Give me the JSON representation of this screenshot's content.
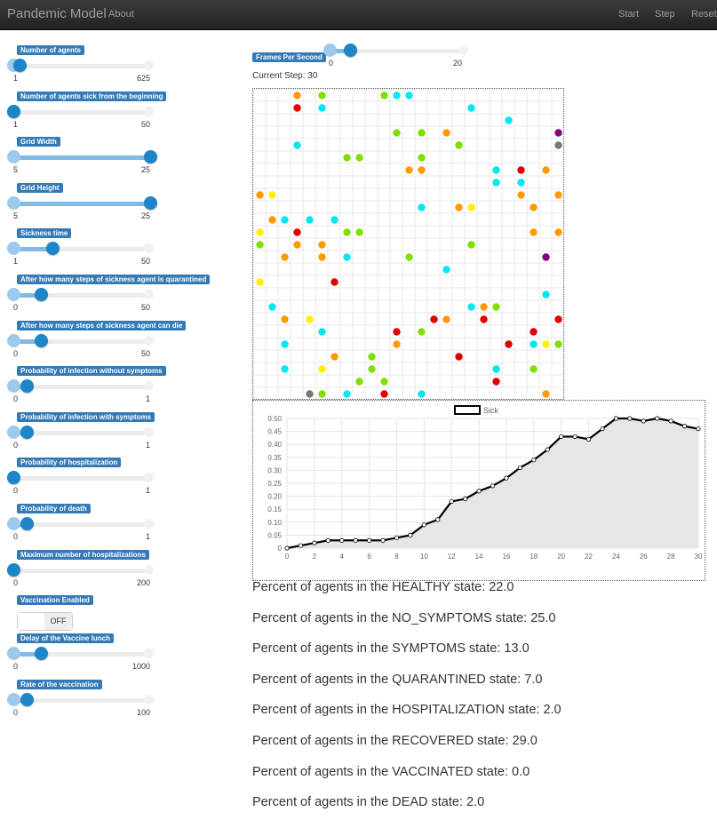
{
  "navbar": {
    "brand": "Pandemic Model",
    "about": "About",
    "start": "Start",
    "step": "Step",
    "reset": "Reset"
  },
  "params": [
    {
      "label": "Number of agents",
      "min": "1",
      "max": "625",
      "fraction": 0.047
    },
    {
      "label": "Number of agents sick from the beginning",
      "min": "1",
      "max": "50",
      "fraction": 0.0
    },
    {
      "label": "Grid Width",
      "min": "5",
      "max": "25",
      "fraction": 1.0
    },
    {
      "label": "Grid Height",
      "min": "5",
      "max": "25",
      "fraction": 1.0
    },
    {
      "label": "Sickness time",
      "min": "1",
      "max": "50",
      "fraction": 0.286
    },
    {
      "label": "After how many steps of sickness agent is quarantined",
      "min": "0",
      "max": "50",
      "fraction": 0.2
    },
    {
      "label": "After how many steps of sickness agent can die",
      "min": "0",
      "max": "50",
      "fraction": 0.2
    },
    {
      "label": "Probability of infection without symptoms",
      "min": "0",
      "max": "1",
      "fraction": 0.1
    },
    {
      "label": "Probability of infection with symptoms",
      "min": "0",
      "max": "1",
      "fraction": 0.1
    },
    {
      "label": "Probability of hospitalization",
      "min": "0",
      "max": "1",
      "fraction": 0.0
    },
    {
      "label": "Probability of death",
      "min": "0",
      "max": "1",
      "fraction": 0.1
    },
    {
      "label": "Maximum number of hospitalizations",
      "min": "0",
      "max": "200",
      "fraction": 0.0
    }
  ],
  "vaccination": {
    "label": "Vaccination Enabled",
    "state": "OFF"
  },
  "vaccine_params": [
    {
      "label": "Delay of the Vaccine lunch",
      "min": "0",
      "max": "1000",
      "fraction": 0.2
    },
    {
      "label": "Rate of the vaccination",
      "min": "0",
      "max": "100",
      "fraction": 0.1
    }
  ],
  "fps": {
    "label": "Frames Per Second",
    "min": "0",
    "max": "20",
    "fraction": 0.15
  },
  "current_step_text": "Current Step: 30",
  "state_colors": {
    "H": "#7fe000",
    "N": "#00e8f0",
    "S": "#ff9900",
    "Q": "#ffee00",
    "P": "#800080",
    "R": "#e00000",
    "D": "#777777"
  },
  "grid_rows": [
    ".....S....H.....HNN.....................",
    ".....R....N..............N.........",
    ".......................................",
    "..................H....H..S.....",
    "...",
    "...",
    "...",
    "..."
  ],
  "agents": [
    {
      "c": 3,
      "r": 0,
      "s": "S"
    },
    {
      "c": 5,
      "r": 0,
      "s": "H"
    },
    {
      "c": 10,
      "r": 0,
      "s": "H"
    },
    {
      "c": 11,
      "r": 0,
      "s": "N"
    },
    {
      "c": 12,
      "r": 0,
      "s": "N"
    },
    {
      "c": 3,
      "r": 1,
      "s": "R"
    },
    {
      "c": 5,
      "r": 1,
      "s": "N"
    },
    {
      "c": 17,
      "r": 1,
      "s": "N"
    },
    {
      "c": 20,
      "r": 2,
      "s": "N"
    },
    {
      "c": 11,
      "r": 3,
      "s": "H"
    },
    {
      "c": 13,
      "r": 3,
      "s": "H"
    },
    {
      "c": 15,
      "r": 3,
      "s": "S"
    },
    {
      "c": 24,
      "r": 3,
      "s": "P"
    },
    {
      "c": 3,
      "r": 4,
      "s": "N"
    },
    {
      "c": 16,
      "r": 4,
      "s": "H"
    },
    {
      "c": 24,
      "r": 4,
      "s": "D"
    },
    {
      "c": 7,
      "r": 5,
      "s": "H"
    },
    {
      "c": 8,
      "r": 5,
      "s": "H"
    },
    {
      "c": 13,
      "r": 5,
      "s": "H"
    },
    {
      "c": 12,
      "r": 6,
      "s": "S"
    },
    {
      "c": 13,
      "r": 6,
      "s": "S"
    },
    {
      "c": 19,
      "r": 6,
      "s": "N"
    },
    {
      "c": 21,
      "r": 6,
      "s": "R"
    },
    {
      "c": 23,
      "r": 6,
      "s": "S"
    },
    {
      "c": 19,
      "r": 7,
      "s": "N"
    },
    {
      "c": 21,
      "r": 7,
      "s": "N"
    },
    {
      "c": 0,
      "r": 8,
      "s": "S"
    },
    {
      "c": 1,
      "r": 8,
      "s": "Q"
    },
    {
      "c": 21,
      "r": 8,
      "s": "S"
    },
    {
      "c": 24,
      "r": 8,
      "s": "S"
    },
    {
      "c": 13,
      "r": 9,
      "s": "N"
    },
    {
      "c": 16,
      "r": 9,
      "s": "S"
    },
    {
      "c": 17,
      "r": 9,
      "s": "Q"
    },
    {
      "c": 22,
      "r": 9,
      "s": "S"
    },
    {
      "c": 1,
      "r": 10,
      "s": "S"
    },
    {
      "c": 2,
      "r": 10,
      "s": "N"
    },
    {
      "c": 4,
      "r": 10,
      "s": "N"
    },
    {
      "c": 6,
      "r": 10,
      "s": "N"
    },
    {
      "c": 0,
      "r": 11,
      "s": "Q"
    },
    {
      "c": 3,
      "r": 11,
      "s": "R"
    },
    {
      "c": 7,
      "r": 11,
      "s": "H"
    },
    {
      "c": 8,
      "r": 11,
      "s": "H"
    },
    {
      "c": 22,
      "r": 11,
      "s": "S"
    },
    {
      "c": 24,
      "r": 11,
      "s": "S"
    },
    {
      "c": 0,
      "r": 12,
      "s": "H"
    },
    {
      "c": 3,
      "r": 12,
      "s": "S"
    },
    {
      "c": 5,
      "r": 12,
      "s": "S"
    },
    {
      "c": 17,
      "r": 12,
      "s": "H"
    },
    {
      "c": 2,
      "r": 13,
      "s": "S"
    },
    {
      "c": 5,
      "r": 13,
      "s": "S"
    },
    {
      "c": 7,
      "r": 13,
      "s": "N"
    },
    {
      "c": 12,
      "r": 13,
      "s": "H"
    },
    {
      "c": 23,
      "r": 13,
      "s": "P"
    },
    {
      "c": 15,
      "r": 14,
      "s": "N"
    },
    {
      "c": 0,
      "r": 15,
      "s": "Q"
    },
    {
      "c": 6,
      "r": 15,
      "s": "R"
    },
    {
      "c": 23,
      "r": 16,
      "s": "N"
    },
    {
      "c": 1,
      "r": 17,
      "s": "N"
    },
    {
      "c": 17,
      "r": 17,
      "s": "N"
    },
    {
      "c": 18,
      "r": 17,
      "s": "S"
    },
    {
      "c": 19,
      "r": 17,
      "s": "H"
    },
    {
      "c": 2,
      "r": 18,
      "s": "S"
    },
    {
      "c": 4,
      "r": 18,
      "s": "Q"
    },
    {
      "c": 14,
      "r": 18,
      "s": "R"
    },
    {
      "c": 15,
      "r": 18,
      "s": "S"
    },
    {
      "c": 18,
      "r": 18,
      "s": "R"
    },
    {
      "c": 24,
      "r": 18,
      "s": "R"
    },
    {
      "c": 5,
      "r": 19,
      "s": "N"
    },
    {
      "c": 11,
      "r": 19,
      "s": "R"
    },
    {
      "c": 13,
      "r": 19,
      "s": "H"
    },
    {
      "c": 22,
      "r": 19,
      "s": "R"
    },
    {
      "c": 2,
      "r": 20,
      "s": "N"
    },
    {
      "c": 11,
      "r": 20,
      "s": "S"
    },
    {
      "c": 20,
      "r": 20,
      "s": "R"
    },
    {
      "c": 22,
      "r": 20,
      "s": "N"
    },
    {
      "c": 23,
      "r": 20,
      "s": "Q"
    },
    {
      "c": 24,
      "r": 20,
      "s": "H"
    },
    {
      "c": 6,
      "r": 21,
      "s": "S"
    },
    {
      "c": 9,
      "r": 21,
      "s": "H"
    },
    {
      "c": 16,
      "r": 21,
      "s": "R"
    },
    {
      "c": 2,
      "r": 22,
      "s": "N"
    },
    {
      "c": 5,
      "r": 22,
      "s": "Q"
    },
    {
      "c": 9,
      "r": 22,
      "s": "H"
    },
    {
      "c": 19,
      "r": 22,
      "s": "N"
    },
    {
      "c": 22,
      "r": 22,
      "s": "H"
    },
    {
      "c": 8,
      "r": 23,
      "s": "H"
    },
    {
      "c": 10,
      "r": 23,
      "s": "H"
    },
    {
      "c": 19,
      "r": 23,
      "s": "R"
    },
    {
      "c": 4,
      "r": 24,
      "s": "D"
    },
    {
      "c": 5,
      "r": 24,
      "s": "H"
    },
    {
      "c": 7,
      "r": 24,
      "s": "N"
    },
    {
      "c": 10,
      "r": 24,
      "s": "R"
    },
    {
      "c": 13,
      "r": 24,
      "s": "N"
    },
    {
      "c": 23,
      "r": 24,
      "s": "S"
    }
  ],
  "chart_data": {
    "type": "area",
    "legend": "Sick",
    "x": [
      0,
      1,
      2,
      3,
      4,
      5,
      6,
      7,
      8,
      9,
      10,
      11,
      12,
      13,
      14,
      15,
      16,
      17,
      18,
      19,
      20,
      21,
      22,
      23,
      24,
      25,
      26,
      27,
      28,
      29,
      30
    ],
    "y": [
      0,
      0.01,
      0.02,
      0.03,
      0.03,
      0.03,
      0.03,
      0.03,
      0.04,
      0.05,
      0.09,
      0.11,
      0.18,
      0.19,
      0.22,
      0.24,
      0.27,
      0.31,
      0.34,
      0.38,
      0.43,
      0.43,
      0.42,
      0.46,
      0.5,
      0.5,
      0.49,
      0.5,
      0.49,
      0.47,
      0.46
    ],
    "xlim": [
      0,
      30
    ],
    "ylim": [
      0,
      0.5
    ],
    "x_ticks": [
      0,
      2,
      4,
      6,
      8,
      10,
      12,
      14,
      16,
      18,
      20,
      22,
      24,
      26,
      28,
      30
    ],
    "y_ticks": [
      "0",
      "0.05",
      "0.10",
      "0.15",
      "0.20",
      "0.25",
      "0.30",
      "0.35",
      "0.40",
      "0.45",
      "0.50"
    ],
    "grid": true,
    "line_color": "#000000",
    "fill_color": "#e6e6e6"
  },
  "stats": [
    "Percent of agents in the HEALTHY state: 22.0",
    "Percent of agents in the NO_SYMPTOMS state: 25.0",
    "Percent of agents in the SYMPTOMS state: 13.0",
    "Percent of agents in the QUARANTINED state: 7.0",
    "Percent of agents in the HOSPITALIZATION state: 2.0",
    "Percent of agents in the RECOVERED state: 29.0",
    "Percent of agents in the VACCINATED state: 0.0",
    "Percent of agents in the DEAD state: 2.0"
  ]
}
